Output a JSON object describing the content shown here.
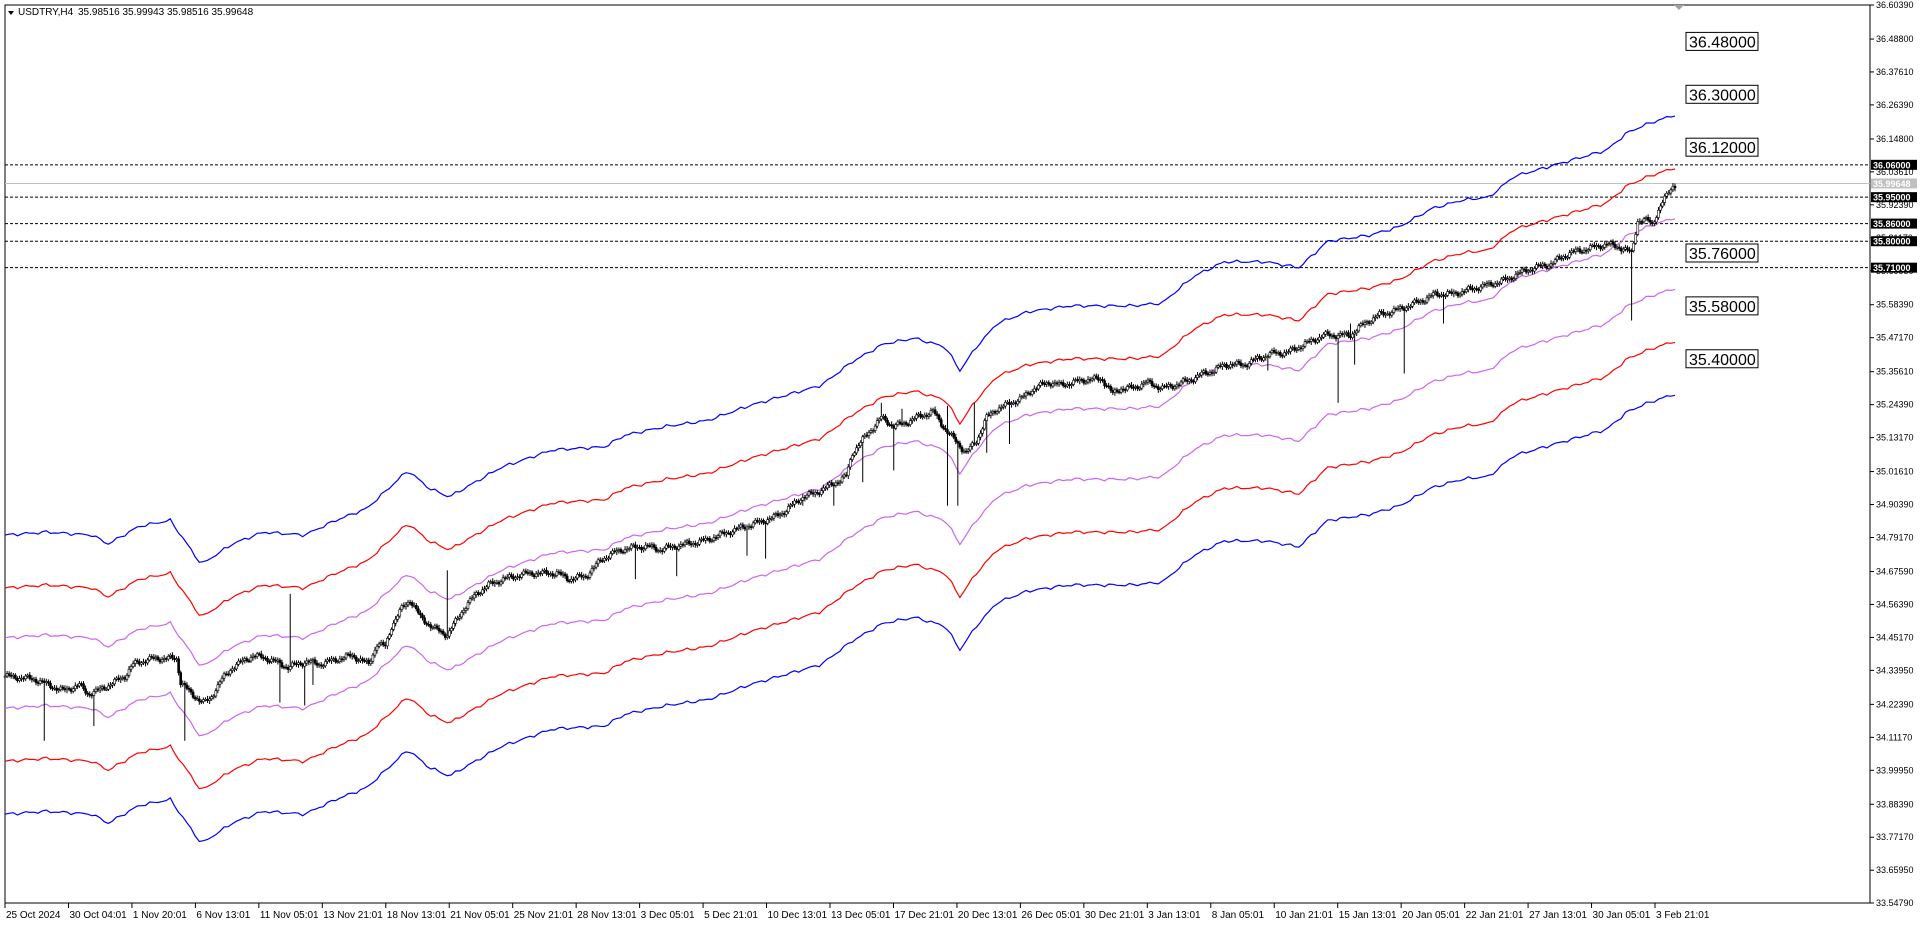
{
  "header": {
    "symbol_label": "USDTRY,H4",
    "ohlc": "35.98516 35.99943 35.98516 35.99648"
  },
  "colors": {
    "band_outer": "#0000ff",
    "band_middle": "#ff0000",
    "band_inner": "#cc66ee",
    "candles": "#000000",
    "level_lines": "#000000",
    "current_price": "#c0c0c0"
  },
  "chart_data": {
    "type": "candlestick",
    "title": "",
    "symbol": "USDTRY",
    "timeframe": "H4",
    "ylim": [
      33.5479,
      36.6039
    ],
    "y_ticks": [
      "36.60390",
      "36.48800",
      "36.37610",
      "36.26390",
      "36.14800",
      "36.03610",
      "35.92390",
      "35.81170",
      "35.69950",
      "35.58390",
      "35.47170",
      "35.35610",
      "35.24390",
      "35.13170",
      "35.01610",
      "34.90390",
      "34.79170",
      "34.67590",
      "34.56390",
      "34.45170",
      "34.33950",
      "34.22390",
      "34.11170",
      "33.99950",
      "33.88390",
      "33.77170",
      "33.65950",
      "33.54790"
    ],
    "x_ticks": [
      "25 Oct 2024",
      "30 Oct 04:01",
      "1 Nov 20:01",
      "6 Nov 13:01",
      "11 Nov 05:01",
      "13 Nov 21:01",
      "18 Nov 13:01",
      "21 Nov 05:01",
      "25 Nov 21:01",
      "28 Nov 13:01",
      "3 Dec 05:01",
      "5 Dec 21:01",
      "10 Dec 13:01",
      "13 Dec 05:01",
      "17 Dec 21:01",
      "20 Dec 13:01",
      "26 Dec 05:01",
      "30 Dec 21:01",
      "3 Jan 13:01",
      "8 Jan 05:01",
      "10 Jan 21:01",
      "15 Jan 13:01",
      "20 Jan 05:01",
      "22 Jan 21:01",
      "27 Jan 13:01",
      "30 Jan 05:01",
      "3 Feb 21:01"
    ],
    "current_price": "35.99648",
    "band_end_labels": [
      "36.48000",
      "36.30000",
      "36.12000",
      "35.76000",
      "35.58000",
      "35.40000"
    ],
    "horizontal_levels": [
      "36.06000",
      "35.95000",
      "35.86000",
      "35.80000",
      "35.71000"
    ],
    "close_path": [
      [
        0,
        34.32
      ],
      [
        14,
        34.31
      ],
      [
        28,
        34.27
      ],
      [
        36,
        34.29
      ],
      [
        40,
        34.26
      ],
      [
        45,
        34.27
      ],
      [
        53,
        34.3
      ],
      [
        58,
        34.32
      ],
      [
        62,
        34.36
      ],
      [
        66,
        34.37
      ],
      [
        72,
        34.38
      ],
      [
        78,
        34.38
      ],
      [
        83,
        34.38
      ],
      [
        85,
        34.3
      ],
      [
        90,
        34.26
      ],
      [
        96,
        34.23
      ],
      [
        99,
        34.24
      ],
      [
        104,
        34.3
      ],
      [
        110,
        34.35
      ],
      [
        120,
        34.39
      ],
      [
        127,
        34.38
      ],
      [
        137,
        34.35
      ],
      [
        146,
        34.37
      ],
      [
        152,
        34.36
      ],
      [
        162,
        34.38
      ],
      [
        168,
        34.39
      ],
      [
        176,
        34.36
      ],
      [
        180,
        34.43
      ],
      [
        184,
        34.42
      ],
      [
        187,
        34.49
      ],
      [
        192,
        34.55
      ],
      [
        196,
        34.58
      ],
      [
        201,
        34.52
      ],
      [
        208,
        34.48
      ],
      [
        214,
        34.46
      ],
      [
        222,
        34.55
      ],
      [
        228,
        34.6
      ],
      [
        234,
        34.63
      ],
      [
        241,
        34.65
      ],
      [
        247,
        34.66
      ],
      [
        253,
        34.67
      ],
      [
        260,
        34.67
      ],
      [
        267,
        34.67
      ],
      [
        273,
        34.65
      ],
      [
        281,
        34.66
      ],
      [
        289,
        34.72
      ],
      [
        298,
        34.75
      ],
      [
        306,
        34.76
      ],
      [
        312,
        34.76
      ],
      [
        317,
        34.75
      ],
      [
        323,
        34.76
      ],
      [
        330,
        34.77
      ],
      [
        338,
        34.78
      ],
      [
        346,
        34.8
      ],
      [
        354,
        34.82
      ],
      [
        363,
        34.84
      ],
      [
        372,
        34.86
      ],
      [
        377,
        34.88
      ],
      [
        386,
        34.93
      ],
      [
        391,
        34.94
      ],
      [
        397,
        34.96
      ],
      [
        407,
        35.0
      ],
      [
        410,
        35.08
      ],
      [
        418,
        35.15
      ],
      [
        424,
        35.2
      ],
      [
        430,
        35.17
      ],
      [
        435,
        35.18
      ],
      [
        441,
        35.2
      ],
      [
        449,
        35.22
      ],
      [
        456,
        35.15
      ],
      [
        460,
        35.12
      ],
      [
        465,
        35.08
      ],
      [
        470,
        35.12
      ],
      [
        475,
        35.2
      ],
      [
        480,
        35.23
      ],
      [
        487,
        35.25
      ],
      [
        493,
        35.27
      ],
      [
        498,
        35.3
      ],
      [
        505,
        35.32
      ],
      [
        511,
        35.31
      ],
      [
        517,
        35.32
      ],
      [
        524,
        35.33
      ],
      [
        531,
        35.33
      ],
      [
        536,
        35.28
      ],
      [
        540,
        35.3
      ],
      [
        546,
        35.3
      ],
      [
        552,
        35.32
      ],
      [
        560,
        35.3
      ],
      [
        566,
        35.31
      ],
      [
        574,
        35.33
      ],
      [
        580,
        35.35
      ],
      [
        585,
        35.36
      ],
      [
        590,
        35.38
      ],
      [
        600,
        35.38
      ],
      [
        606,
        35.4
      ],
      [
        614,
        35.42
      ],
      [
        620,
        35.42
      ],
      [
        626,
        35.44
      ],
      [
        632,
        35.46
      ],
      [
        638,
        35.48
      ],
      [
        645,
        35.48
      ],
      [
        651,
        35.48
      ],
      [
        654,
        35.5
      ],
      [
        660,
        35.53
      ],
      [
        665,
        35.55
      ],
      [
        671,
        35.56
      ],
      [
        679,
        35.58
      ],
      [
        686,
        35.6
      ],
      [
        692,
        35.62
      ],
      [
        700,
        35.62
      ],
      [
        706,
        35.63
      ],
      [
        711,
        35.64
      ],
      [
        717,
        35.65
      ],
      [
        722,
        35.66
      ],
      [
        727,
        35.67
      ],
      [
        732,
        35.69
      ],
      [
        740,
        35.71
      ],
      [
        747,
        35.72
      ],
      [
        752,
        35.74
      ],
      [
        757,
        35.76
      ],
      [
        763,
        35.77
      ],
      [
        769,
        35.78
      ],
      [
        775,
        35.79
      ],
      [
        781,
        35.78
      ],
      [
        784,
        35.77
      ],
      [
        787,
        35.76
      ],
      [
        790,
        35.87
      ],
      [
        795,
        35.87
      ],
      [
        797,
        35.86
      ],
      [
        799,
        35.89
      ],
      [
        802,
        35.93
      ],
      [
        805,
        35.97
      ],
      [
        807,
        35.99
      ]
    ],
    "wicks_down": [
      [
        19,
        34.1
      ],
      [
        43,
        34.15
      ],
      [
        87,
        34.1
      ],
      [
        133,
        34.23
      ],
      [
        145,
        34.22
      ],
      [
        149,
        34.29
      ],
      [
        173,
        34.48
      ],
      [
        207,
        34.48
      ],
      [
        213,
        34.48
      ],
      [
        276,
        34.64
      ],
      [
        305,
        34.65
      ],
      [
        325,
        34.66
      ],
      [
        359,
        34.73
      ],
      [
        368,
        34.72
      ],
      [
        386,
        34.9
      ],
      [
        401,
        34.9
      ],
      [
        415,
        34.98
      ],
      [
        430,
        35.02
      ],
      [
        456,
        34.9
      ],
      [
        461,
        34.9
      ],
      [
        475,
        35.08
      ],
      [
        486,
        35.11
      ],
      [
        611,
        35.36
      ],
      [
        645,
        35.25
      ],
      [
        653,
        35.38
      ],
      [
        677,
        35.35
      ],
      [
        696,
        35.52
      ],
      [
        787,
        35.53
      ],
      [
        790,
        35.85
      ],
      [
        798,
        35.89
      ]
    ],
    "wicks_up": [
      [
        138,
        34.6
      ],
      [
        214,
        34.68
      ],
      [
        241,
        34.64
      ],
      [
        424,
        35.25
      ],
      [
        434,
        35.23
      ],
      [
        456,
        35.24
      ],
      [
        469,
        35.25
      ],
      [
        651,
        35.52
      ],
      [
        667,
        35.53
      ],
      [
        696,
        35.6
      ]
    ],
    "series": [
      {
        "name": "",
        "role": "band_outer",
        "offset": 0.47
      },
      {
        "name": "",
        "role": "band_middle",
        "offset": 0.29
      },
      {
        "name": "",
        "role": "band_inner",
        "offset": 0.12
      },
      {
        "name": "",
        "role": "band_inner",
        "offset": -0.12
      },
      {
        "name": "",
        "role": "band_middle",
        "offset": -0.3
      },
      {
        "name": "",
        "role": "band_outer",
        "offset": -0.48
      }
    ],
    "basis_path": [
      [
        0,
        34.33
      ],
      [
        20,
        34.34
      ],
      [
        42,
        34.33
      ],
      [
        50,
        34.3
      ],
      [
        65,
        34.36
      ],
      [
        80,
        34.38
      ],
      [
        88,
        34.3
      ],
      [
        95,
        34.23
      ],
      [
        110,
        34.3
      ],
      [
        125,
        34.34
      ],
      [
        145,
        34.33
      ],
      [
        160,
        34.38
      ],
      [
        175,
        34.42
      ],
      [
        195,
        34.55
      ],
      [
        205,
        34.49
      ],
      [
        215,
        34.46
      ],
      [
        240,
        34.56
      ],
      [
        265,
        34.62
      ],
      [
        290,
        34.63
      ],
      [
        300,
        34.67
      ],
      [
        320,
        34.7
      ],
      [
        340,
        34.72
      ],
      [
        360,
        34.77
      ],
      [
        380,
        34.81
      ],
      [
        395,
        34.84
      ],
      [
        410,
        34.92
      ],
      [
        425,
        34.98
      ],
      [
        440,
        35.0
      ],
      [
        455,
        34.97
      ],
      [
        462,
        34.89
      ],
      [
        470,
        34.97
      ],
      [
        480,
        35.05
      ],
      [
        495,
        35.09
      ],
      [
        515,
        35.11
      ],
      [
        530,
        35.11
      ],
      [
        545,
        35.11
      ],
      [
        560,
        35.12
      ],
      [
        575,
        35.21
      ],
      [
        590,
        35.26
      ],
      [
        610,
        35.26
      ],
      [
        626,
        35.24
      ],
      [
        640,
        35.33
      ],
      [
        660,
        35.35
      ],
      [
        675,
        35.38
      ],
      [
        690,
        35.44
      ],
      [
        705,
        35.47
      ],
      [
        718,
        35.48
      ],
      [
        730,
        35.55
      ],
      [
        745,
        35.58
      ],
      [
        760,
        35.61
      ],
      [
        775,
        35.64
      ],
      [
        785,
        35.7
      ],
      [
        795,
        35.73
      ],
      [
        808,
        35.76
      ]
    ]
  }
}
